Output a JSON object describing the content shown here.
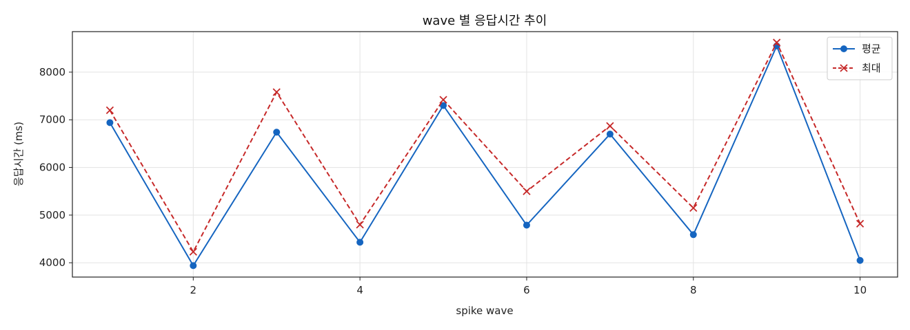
{
  "chart_data": {
    "type": "line",
    "title": "wave 별 응답시간 추이",
    "xlabel": "spike wave",
    "ylabel": "응답시간 (ms)",
    "x": [
      1,
      2,
      3,
      4,
      5,
      6,
      7,
      8,
      9,
      10
    ],
    "xlim": [
      0.55,
      10.45
    ],
    "ylim": [
      3700,
      8850
    ],
    "xticks": [
      2,
      4,
      6,
      8,
      10
    ],
    "yticks": [
      4000,
      5000,
      6000,
      7000,
      8000
    ],
    "grid": true,
    "legend_position": "top-right",
    "series": [
      {
        "name": "평균",
        "color": "#1565c0",
        "line_style": "solid",
        "marker": "circle",
        "values": [
          6940,
          3940,
          6740,
          4430,
          7300,
          4790,
          6700,
          4590,
          8550,
          4050
        ]
      },
      {
        "name": "최대",
        "color": "#c62828",
        "line_style": "dashed",
        "marker": "x",
        "values": [
          7200,
          4230,
          7580,
          4800,
          7420,
          5500,
          6870,
          5150,
          8620,
          4820
        ]
      }
    ]
  }
}
